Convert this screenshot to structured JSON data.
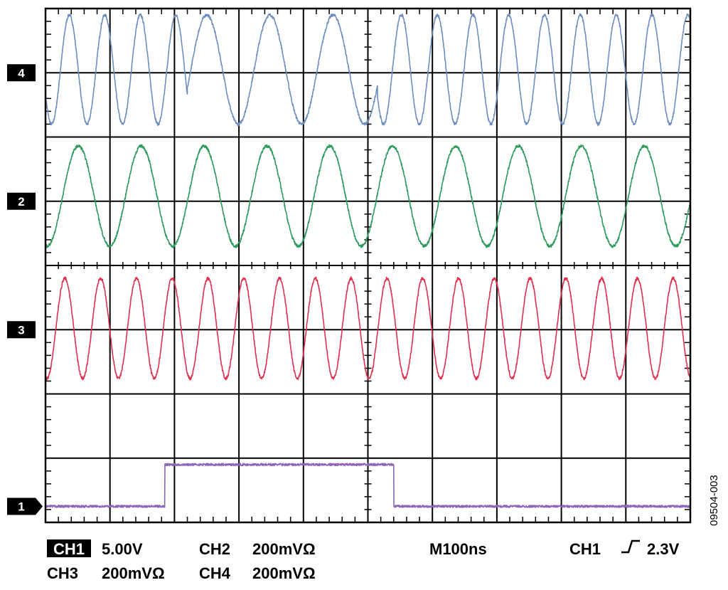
{
  "figure_id": "09504-003",
  "chart_data": {
    "type": "line",
    "title": "",
    "xlabel": "",
    "ylabel": "",
    "grid": true,
    "divisions": {
      "x": 10,
      "y": 8
    },
    "time_per_div_ns": 100,
    "series": [
      {
        "name": "4",
        "color": "#6E8EC0",
        "kind": "sine",
        "amplitude_div": 0.85,
        "center_div": 3.05,
        "segments": [
          {
            "from_div": 0.0,
            "to_div": 2.2,
            "period_div": 0.55,
            "phase_div": 0.37
          },
          {
            "from_div": 2.2,
            "to_div": 5.15,
            "period_div": 0.98,
            "phase_div": 2.5
          },
          {
            "from_div": 5.15,
            "to_div": 10.0,
            "period_div": 0.555,
            "phase_div": 5.52
          }
        ]
      },
      {
        "name": "2",
        "color": "#2E9A5E",
        "kind": "sine",
        "amplitude_div": 0.78,
        "center_div": 1.08,
        "segments": [
          {
            "from_div": 0.0,
            "to_div": 10.0,
            "period_div": 0.975,
            "phase_div": 0.51
          }
        ]
      },
      {
        "name": "3",
        "color": "#E0304E",
        "kind": "sine",
        "amplitude_div": 0.78,
        "center_div": -0.98,
        "segments": [
          {
            "from_div": 0.0,
            "to_div": 10.0,
            "period_div": 0.555,
            "phase_div": 0.3
          }
        ]
      },
      {
        "name": "1",
        "color": "#8E63B8",
        "kind": "pulse",
        "low_div": -3.75,
        "high_div": -3.1,
        "rise_div": 1.85,
        "fall_div": 5.4
      }
    ],
    "markers": [
      {
        "label": "4",
        "level_div": 3.0
      },
      {
        "label": "2",
        "level_div": 1.0
      },
      {
        "label": "3",
        "level_div": -1.0
      },
      {
        "label": "1",
        "level_div": -3.75
      }
    ],
    "settings": {
      "ch1_tag": "CH1",
      "ch1_scale": "5.00V",
      "ch2": "CH2",
      "ch2_scale": "200mVΩ",
      "timebase": "M100ns",
      "trigger_ch": "CH1",
      "trigger_icon": "rising-edge-icon",
      "trigger_level": "2.3V",
      "ch3": "CH3",
      "ch3_scale": "200mVΩ",
      "ch4": "CH4",
      "ch4_scale": "200mVΩ"
    }
  }
}
